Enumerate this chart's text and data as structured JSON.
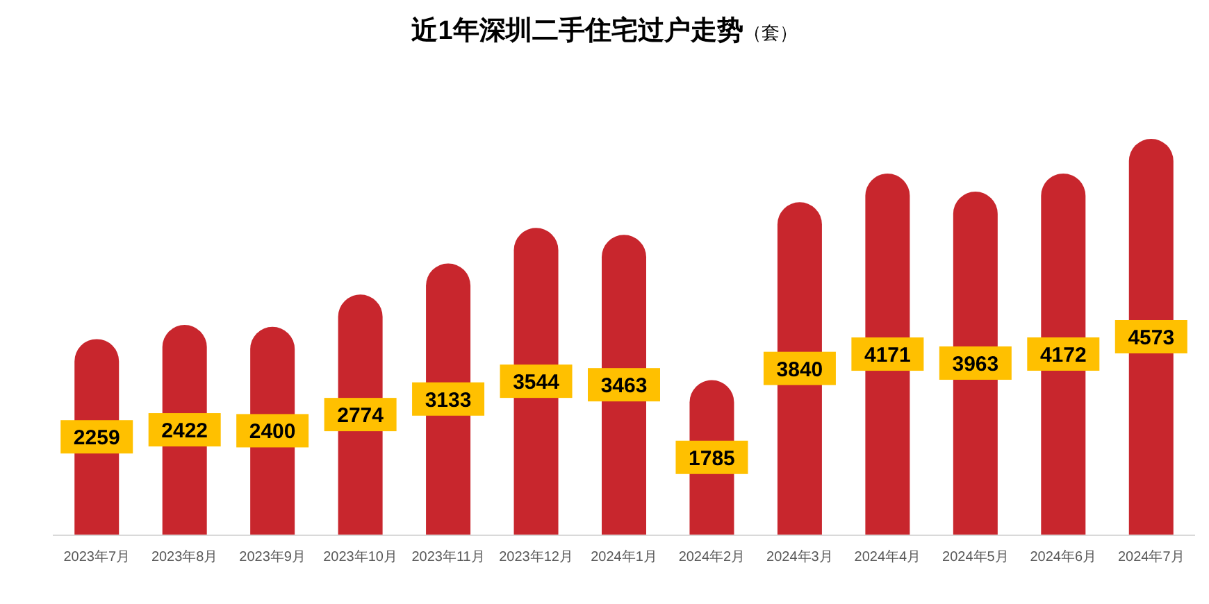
{
  "chart_data": {
    "type": "bar",
    "title": "近1年深圳二手住宅过户走势",
    "subtitle": "（套）",
    "categories": [
      "2023年7月",
      "2023年8月",
      "2023年9月",
      "2023年10月",
      "2023年11月",
      "2023年12月",
      "2024年1月",
      "2024年2月",
      "2024年3月",
      "2024年4月",
      "2024年5月",
      "2024年6月",
      "2024年7月"
    ],
    "values": [
      2259,
      2422,
      2400,
      2774,
      3133,
      3544,
      3463,
      1785,
      3840,
      4171,
      3963,
      4172,
      4573
    ],
    "color": "#c8262d",
    "data_labels": true
  }
}
